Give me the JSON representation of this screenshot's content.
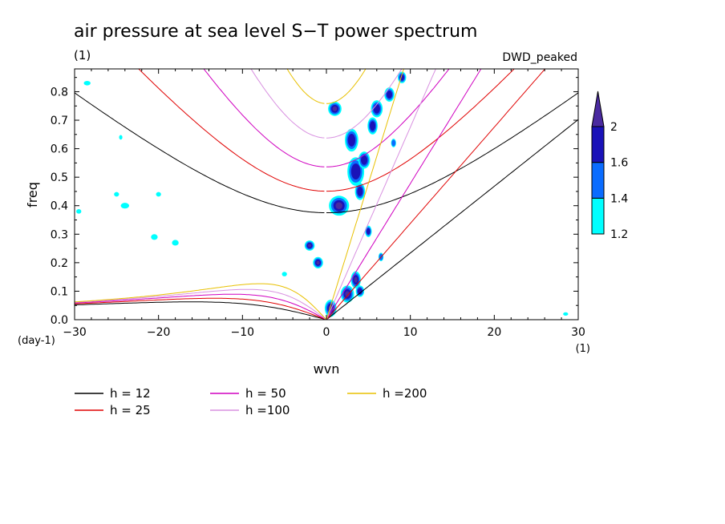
{
  "chart_data": {
    "type": "heatmap",
    "title": "air pressure at sea level S−T power spectrum",
    "units_label": "(1)",
    "model_label": "DWD_peaked",
    "xlabel": "wvn",
    "ylabel": "freq",
    "x_unit": "(1)",
    "y_unit": "(day-1)",
    "xlim": [
      -30,
      30
    ],
    "ylim": [
      0,
      0.88
    ],
    "xticks": [
      -30,
      -20,
      -10,
      0,
      10,
      20,
      30
    ],
    "xtick_labels": [
      "−30",
      "−20",
      "−10",
      "0",
      "10",
      "20",
      "30"
    ],
    "yticks": [
      0,
      0.1,
      0.2,
      0.3,
      0.4,
      0.5,
      0.6,
      0.7,
      0.8
    ],
    "ytick_labels": [
      "0.0",
      "0.1",
      "0.2",
      "0.3",
      "0.4",
      "0.5",
      "0.6",
      "0.7",
      "0.8"
    ],
    "colorbar": {
      "levels": [
        1.2,
        1.4,
        1.6,
        2
      ],
      "labels": [
        "1.2",
        "1.4",
        "1.6",
        "2"
      ],
      "colors": [
        "#00ffff",
        "#0a6cff",
        "#1a12b8",
        "#4a2aa0"
      ]
    },
    "dispersion_curves": [
      {
        "h": 12,
        "label": "h = 12",
        "color": "#000000"
      },
      {
        "h": 25,
        "label": "h = 25",
        "color": "#e00000"
      },
      {
        "h": 50,
        "label": "h = 50",
        "color": "#d000c0"
      },
      {
        "h": 100,
        "label": "h =100",
        "color": "#d890e0"
      },
      {
        "h": 200,
        "label": "h =200",
        "color": "#e8c000"
      }
    ],
    "blobs": [
      {
        "x": 1.0,
        "y": 0.74,
        "rx": 0.8,
        "ry": 0.025,
        "level": 3
      },
      {
        "x": 1.5,
        "y": 0.4,
        "rx": 1.2,
        "ry": 0.035,
        "level": 3
      },
      {
        "x": -2.0,
        "y": 0.26,
        "rx": 0.6,
        "ry": 0.018,
        "level": 3
      },
      {
        "x": -1.0,
        "y": 0.2,
        "rx": 0.6,
        "ry": 0.02,
        "level": 3
      },
      {
        "x": 3.0,
        "y": 0.63,
        "rx": 0.8,
        "ry": 0.04,
        "level": 2
      },
      {
        "x": 3.5,
        "y": 0.52,
        "rx": 1.0,
        "ry": 0.05,
        "level": 2
      },
      {
        "x": 4.5,
        "y": 0.56,
        "rx": 0.7,
        "ry": 0.03,
        "level": 2
      },
      {
        "x": 5.5,
        "y": 0.68,
        "rx": 0.6,
        "ry": 0.03,
        "level": 2
      },
      {
        "x": 6.0,
        "y": 0.74,
        "rx": 0.7,
        "ry": 0.03,
        "level": 2
      },
      {
        "x": 7.5,
        "y": 0.79,
        "rx": 0.6,
        "ry": 0.025,
        "level": 2
      },
      {
        "x": 9.0,
        "y": 0.85,
        "rx": 0.5,
        "ry": 0.02,
        "level": 2
      },
      {
        "x": 4.0,
        "y": 0.45,
        "rx": 0.6,
        "ry": 0.03,
        "level": 2
      },
      {
        "x": 5.0,
        "y": 0.31,
        "rx": 0.4,
        "ry": 0.02,
        "level": 2
      },
      {
        "x": 3.5,
        "y": 0.14,
        "rx": 0.6,
        "ry": 0.03,
        "level": 3
      },
      {
        "x": 2.5,
        "y": 0.09,
        "rx": 0.8,
        "ry": 0.03,
        "level": 3
      },
      {
        "x": 0.5,
        "y": 0.04,
        "rx": 0.7,
        "ry": 0.03,
        "level": 3
      },
      {
        "x": 4.0,
        "y": 0.1,
        "rx": 0.5,
        "ry": 0.02,
        "level": 2
      },
      {
        "x": 6.5,
        "y": 0.22,
        "rx": 0.3,
        "ry": 0.015,
        "level": 1
      },
      {
        "x": 8.0,
        "y": 0.62,
        "rx": 0.3,
        "ry": 0.015,
        "level": 1
      },
      {
        "x": -24.0,
        "y": 0.4,
        "rx": 0.5,
        "ry": 0.01,
        "level": 0
      },
      {
        "x": -20.5,
        "y": 0.29,
        "rx": 0.4,
        "ry": 0.01,
        "level": 0
      },
      {
        "x": -18.0,
        "y": 0.27,
        "rx": 0.4,
        "ry": 0.01,
        "level": 0
      },
      {
        "x": -28.5,
        "y": 0.83,
        "rx": 0.4,
        "ry": 0.008,
        "level": 0
      },
      {
        "x": -25.0,
        "y": 0.44,
        "rx": 0.3,
        "ry": 0.008,
        "level": 0
      },
      {
        "x": -20.0,
        "y": 0.44,
        "rx": 0.3,
        "ry": 0.008,
        "level": 0
      },
      {
        "x": -24.5,
        "y": 0.64,
        "rx": 0.2,
        "ry": 0.008,
        "level": 0
      },
      {
        "x": -29.5,
        "y": 0.38,
        "rx": 0.3,
        "ry": 0.008,
        "level": 0
      },
      {
        "x": -5.0,
        "y": 0.16,
        "rx": 0.3,
        "ry": 0.008,
        "level": 0
      },
      {
        "x": 28.5,
        "y": 0.02,
        "rx": 0.3,
        "ry": 0.006,
        "level": 0
      }
    ]
  }
}
